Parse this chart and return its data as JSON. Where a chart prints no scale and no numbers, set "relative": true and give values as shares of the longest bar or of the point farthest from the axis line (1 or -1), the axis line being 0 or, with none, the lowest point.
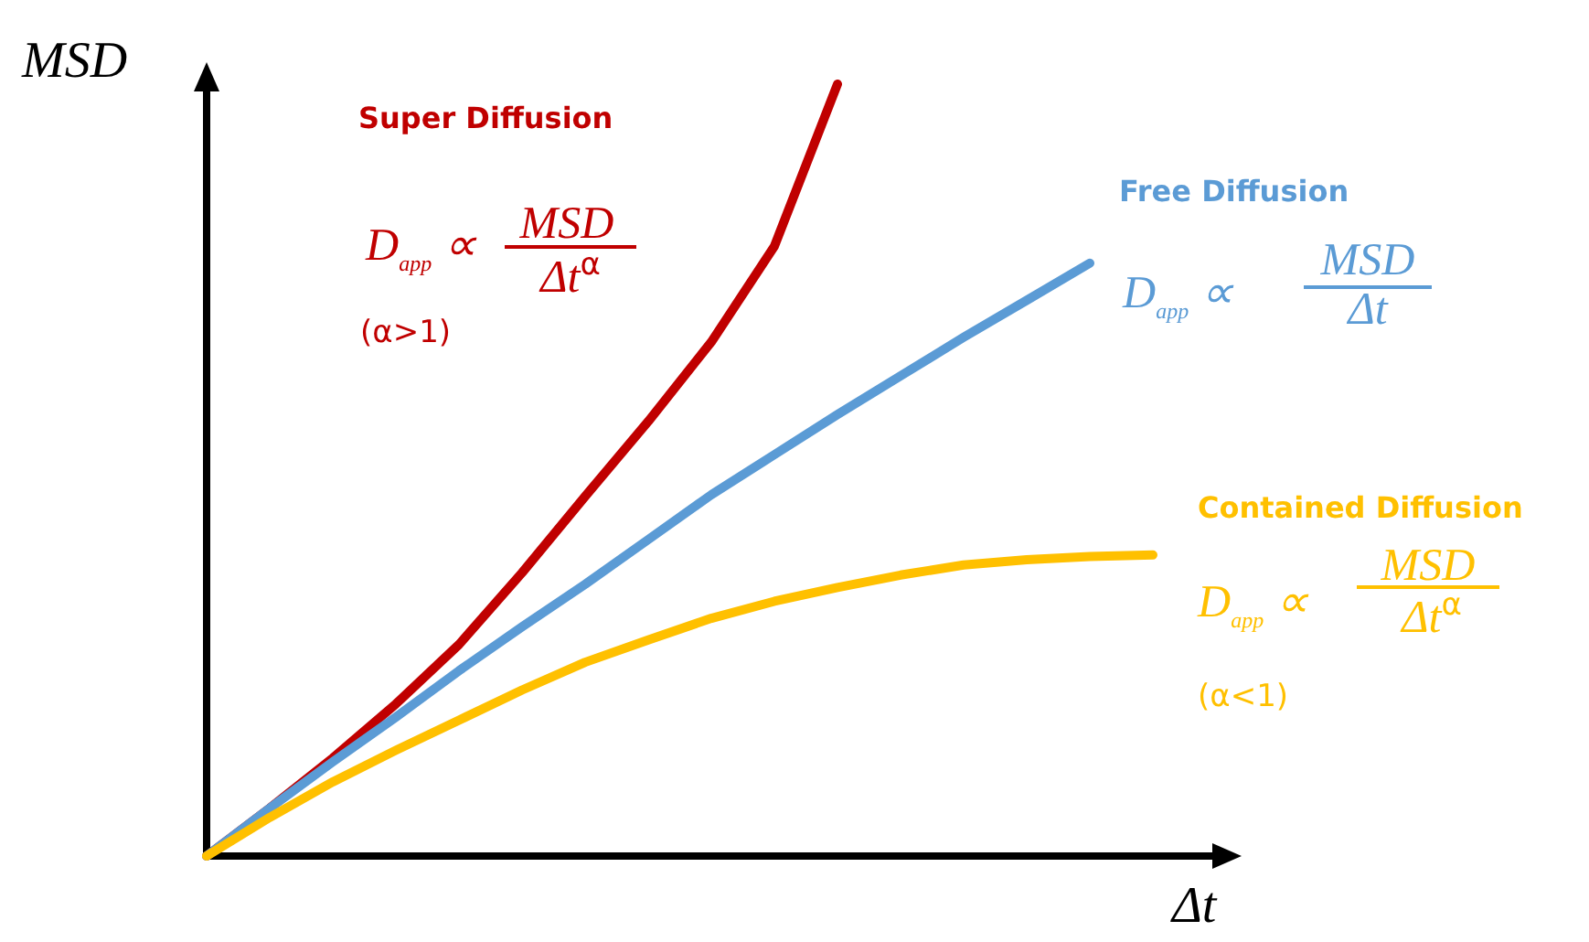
{
  "chart_data": {
    "type": "line",
    "relative": true,
    "xlabel": "Δt",
    "ylabel": "MSD",
    "grid": false,
    "legend": false,
    "marker": "none",
    "line_style": "solid",
    "categories": [
      null,
      null,
      null,
      null,
      null,
      null,
      null,
      null,
      null,
      null,
      null,
      null,
      null,
      null,
      null,
      null,
      null
    ],
    "series": [
      {
        "name": "Super Diffusion",
        "color": "#c00000",
        "values": [
          0,
          0.062,
          0.127,
          0.197,
          0.274,
          0.367,
          0.466,
          0.563,
          0.666,
          0.79,
          1,
          null,
          null,
          null,
          null,
          null,
          null
        ]
      },
      {
        "name": "Free Diffusion",
        "color": "#5b9bd5",
        "values": [
          0,
          0.062,
          0.122,
          0.18,
          0.24,
          0.297,
          0.352,
          0.41,
          0.468,
          0.52,
          0.572,
          0.622,
          0.672,
          0.72,
          0.768,
          null,
          null
        ]
      },
      {
        "name": "Contained Diffusion",
        "color": "#ffc000",
        "values": [
          0,
          0.05,
          0.096,
          0.137,
          0.176,
          0.215,
          0.251,
          0.28,
          0.308,
          0.33,
          0.348,
          0.364,
          0.377,
          0.384,
          0.388,
          0.39,
          null
        ]
      }
    ],
    "annotations": [
      "D$_{app}$ ∝",
      "MSD",
      "Δt$^{α}$",
      "(α>1)",
      "D$_{app}$ ∝",
      "MSD",
      "Δt",
      "D$_{app}$ ∝",
      "MSD",
      "Δt$^{α}$",
      "(α<1)"
    ]
  }
}
